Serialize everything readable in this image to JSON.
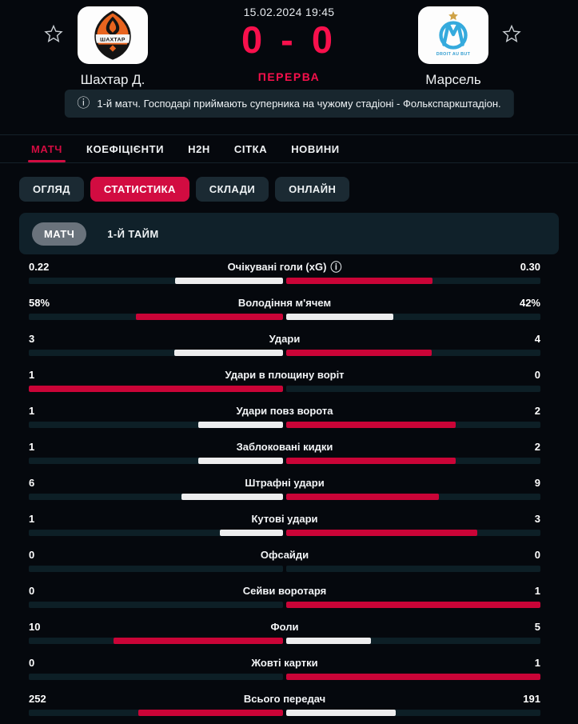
{
  "header": {
    "datetime": "15.02.2024 19:45",
    "score": "0 - 0",
    "status": "ПЕРЕРВА",
    "home": {
      "name": "Шахтар Д.",
      "crest_text": "ШАХТАР"
    },
    "away": {
      "name": "Марсель",
      "crest_text": "DROIT AU BUT"
    },
    "notice": "1-й матч. Господарі приймають суперника на чужому стадіоні - Фолькспаркштадіон.",
    "info_icon": "ⓘ"
  },
  "tabs": [
    {
      "key": "match",
      "label": "МАТЧ",
      "active": true
    },
    {
      "key": "odds",
      "label": "КОЕФІЦІЄНТИ",
      "active": false
    },
    {
      "key": "h2h",
      "label": "H2H",
      "active": false
    },
    {
      "key": "draw",
      "label": "СІТКА",
      "active": false
    },
    {
      "key": "news",
      "label": "НОВИНИ",
      "active": false
    }
  ],
  "subtabs": [
    {
      "key": "overview",
      "label": "ОГЛЯД",
      "active": false
    },
    {
      "key": "statistics",
      "label": "СТАТИСТИКА",
      "active": true
    },
    {
      "key": "lineups",
      "label": "СКЛАДИ",
      "active": false
    },
    {
      "key": "live",
      "label": "ОНЛАЙН",
      "active": false
    }
  ],
  "period_toggle": [
    {
      "key": "match",
      "label": "МАТЧ",
      "active": true
    },
    {
      "key": "first-half",
      "label": "1-Й ТАЙМ",
      "active": false
    }
  ],
  "chart_data": {
    "type": "bar",
    "orientation": "horizontal-split",
    "legend": [
      "Шахтар Д.",
      "Марсель"
    ],
    "note": "fill = value/(home+away) of each half from center; leading side red, other white; 0-0 empty",
    "rows": [
      {
        "label": "Очікувані голи (xG)",
        "home": "0.22",
        "away": "0.30",
        "info": true
      },
      {
        "label": "Володіння м'ячем",
        "home": "58%",
        "away": "42%"
      },
      {
        "label": "Удари",
        "home": "3",
        "away": "4"
      },
      {
        "label": "Удари в площину воріт",
        "home": "1",
        "away": "0"
      },
      {
        "label": "Удари повз ворота",
        "home": "1",
        "away": "2"
      },
      {
        "label": "Заблоковані кидки",
        "home": "1",
        "away": "2"
      },
      {
        "label": "Штрафні удари",
        "home": "6",
        "away": "9"
      },
      {
        "label": "Кутові удари",
        "home": "1",
        "away": "3"
      },
      {
        "label": "Офсайди",
        "home": "0",
        "away": "0"
      },
      {
        "label": "Сейви воротаря",
        "home": "0",
        "away": "1"
      },
      {
        "label": "Фоли",
        "home": "10",
        "away": "5"
      },
      {
        "label": "Жовті картки",
        "home": "0",
        "away": "1"
      },
      {
        "label": "Всього передач",
        "home": "252",
        "away": "191"
      }
    ]
  },
  "colors": {
    "page_bg": "#05080d",
    "accent": "#d20c41",
    "accent_bright": "#f8104c",
    "bar_red": "#ca0437",
    "bar_white": "#ededee",
    "bar_bg": "#0d1f26",
    "panel_bg": "#18262e",
    "card_bg": "#10212a",
    "pill_bg": "#1b2a33",
    "toggle_bg": "#6a737c",
    "separator": "#142129",
    "text": "#eef2f4",
    "shakhtar_orange": "#e8641f",
    "marseille_blue": "#35aadd",
    "gold": "#cfa348"
  }
}
